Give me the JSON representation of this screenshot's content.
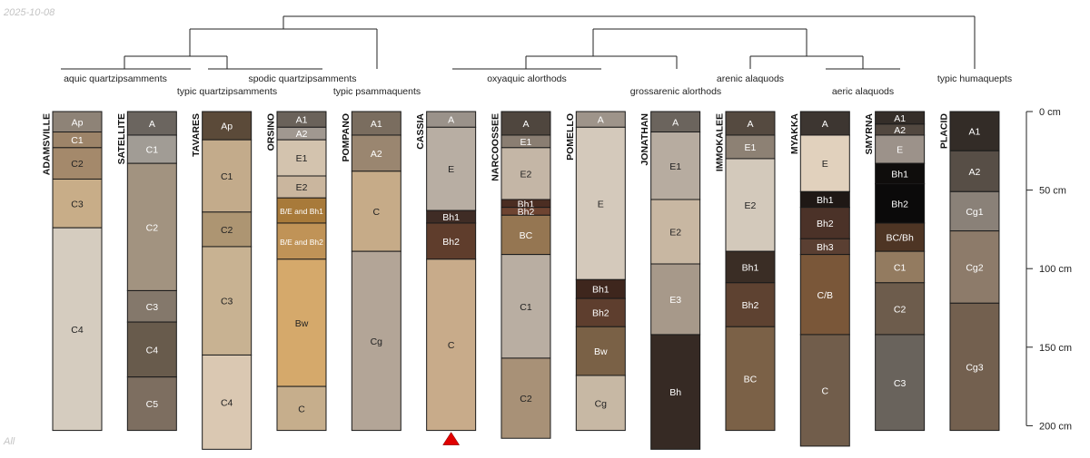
{
  "date_stamp": "2025-10-08",
  "footer_label": "All",
  "chart_data": {
    "type": "soil-profile-sketch",
    "depth_unit": "cm",
    "depth_range": [
      0,
      200
    ],
    "depth_ticks": [
      {
        "depth": 0,
        "label": "0 cm"
      },
      {
        "depth": 50,
        "label": "50 cm"
      },
      {
        "depth": 100,
        "label": "100 cm"
      },
      {
        "depth": 150,
        "label": "150 cm"
      },
      {
        "depth": 200,
        "label": "200 cm"
      }
    ],
    "taxa": [
      {
        "label": "aquic quartzipsamments"
      },
      {
        "label": "typic quartzipsamments"
      },
      {
        "label": "spodic quartzipsamments"
      },
      {
        "label": "typic psammaquents"
      },
      {
        "label": "oxyaquic alorthods"
      },
      {
        "label": "grossarenic alorthods"
      },
      {
        "label": "arenic alaquods"
      },
      {
        "label": "aeric alaquods"
      },
      {
        "label": "typic humaquepts"
      }
    ],
    "profiles": [
      {
        "name": "ADAMSVILLE",
        "horizons": [
          {
            "name": "Ap",
            "top": 0,
            "bottom": 13,
            "color": "#8e8377",
            "text": "#ffffff"
          },
          {
            "name": "C1",
            "top": 13,
            "bottom": 23,
            "color": "#9d8469",
            "text": "#ffffff"
          },
          {
            "name": "C2",
            "top": 23,
            "bottom": 43,
            "color": "#a4896b",
            "text": "#222222"
          },
          {
            "name": "C3",
            "top": 43,
            "bottom": 74,
            "color": "#c8ad88",
            "text": "#222222"
          },
          {
            "name": "C4",
            "top": 74,
            "bottom": 203,
            "color": "#d5ccbf",
            "text": "#222222"
          }
        ]
      },
      {
        "name": "SATELLITE",
        "horizons": [
          {
            "name": "A",
            "top": 0,
            "bottom": 15,
            "color": "#6b655f",
            "text": "#ffffff"
          },
          {
            "name": "C1",
            "top": 15,
            "bottom": 33,
            "color": "#a19c95",
            "text": "#ffffff"
          },
          {
            "name": "C2",
            "top": 33,
            "bottom": 114,
            "color": "#a29380",
            "text": "#ffffff"
          },
          {
            "name": "C3",
            "top": 114,
            "bottom": 134,
            "color": "#84786b",
            "text": "#ffffff"
          },
          {
            "name": "C4",
            "top": 134,
            "bottom": 169,
            "color": "#685b4c",
            "text": "#ffffff"
          },
          {
            "name": "C5",
            "top": 169,
            "bottom": 203,
            "color": "#7d6e60",
            "text": "#ffffff"
          }
        ]
      },
      {
        "name": "TAVARES",
        "horizons": [
          {
            "name": "Ap",
            "top": 0,
            "bottom": 18,
            "color": "#5b4a39",
            "text": "#ffffff"
          },
          {
            "name": "C1",
            "top": 18,
            "bottom": 64,
            "color": "#c3ab8b",
            "text": "#222222"
          },
          {
            "name": "C2",
            "top": 64,
            "bottom": 86,
            "color": "#ad9572",
            "text": "#222222"
          },
          {
            "name": "C3",
            "top": 86,
            "bottom": 155,
            "color": "#c8b292",
            "text": "#222222"
          },
          {
            "name": "C4",
            "top": 155,
            "bottom": 215,
            "color": "#dac8b2",
            "text": "#222222"
          }
        ]
      },
      {
        "name": "ORSINO",
        "horizons": [
          {
            "name": "A1",
            "top": 0,
            "bottom": 10,
            "color": "#6a625a",
            "text": "#ffffff"
          },
          {
            "name": "A2",
            "top": 10,
            "bottom": 18,
            "color": "#a09890",
            "text": "#ffffff"
          },
          {
            "name": "E1",
            "top": 18,
            "bottom": 41,
            "color": "#d3c3ae",
            "text": "#222222"
          },
          {
            "name": "E2",
            "top": 41,
            "bottom": 55,
            "color": "#cab69e",
            "text": "#222222"
          },
          {
            "name": "B/E and Bh1",
            "top": 55,
            "bottom": 71,
            "color": "#a87a3a",
            "text": "#ffffff"
          },
          {
            "name": "B/E and Bh2",
            "top": 71,
            "bottom": 94,
            "color": "#c09357",
            "text": "#ffffff"
          },
          {
            "name": "Bw",
            "top": 94,
            "bottom": 175,
            "color": "#d5a96b",
            "text": "#222222"
          },
          {
            "name": "C",
            "top": 175,
            "bottom": 203,
            "color": "#c6ae8c",
            "text": "#222222"
          }
        ]
      },
      {
        "name": "POMPANO",
        "horizons": [
          {
            "name": "A1",
            "top": 0,
            "bottom": 15,
            "color": "#7a6d5f",
            "text": "#ffffff"
          },
          {
            "name": "A2",
            "top": 15,
            "bottom": 38,
            "color": "#9a8670",
            "text": "#ffffff"
          },
          {
            "name": "C",
            "top": 38,
            "bottom": 89,
            "color": "#c6ab88",
            "text": "#222222"
          },
          {
            "name": "Cg",
            "top": 89,
            "bottom": 203,
            "color": "#b3a597",
            "text": "#222222"
          }
        ]
      },
      {
        "name": "CASSIA",
        "triangle": true,
        "horizons": [
          {
            "name": "A",
            "top": 0,
            "bottom": 10,
            "color": "#9a928a",
            "text": "#ffffff"
          },
          {
            "name": "E",
            "top": 10,
            "bottom": 63,
            "color": "#b8aea3",
            "text": "#222222"
          },
          {
            "name": "Bh1",
            "top": 63,
            "bottom": 71,
            "color": "#3f2c25",
            "text": "#ffffff"
          },
          {
            "name": "Bh2",
            "top": 71,
            "bottom": 94,
            "color": "#5f3d2c",
            "text": "#ffffff"
          },
          {
            "name": "C",
            "top": 94,
            "bottom": 203,
            "color": "#c8ab8a",
            "text": "#222222"
          }
        ]
      },
      {
        "name": "NARCOOSSEE",
        "horizons": [
          {
            "name": "A",
            "top": 0,
            "bottom": 15,
            "color": "#4f463e",
            "text": "#ffffff"
          },
          {
            "name": "E1",
            "top": 15,
            "bottom": 23,
            "color": "#8a7e72",
            "text": "#ffffff"
          },
          {
            "name": "E2",
            "top": 23,
            "bottom": 56,
            "color": "#c4b6a6",
            "text": "#222222"
          },
          {
            "name": "Bh1",
            "top": 56,
            "bottom": 61,
            "color": "#4b2d22",
            "text": "#ffffff"
          },
          {
            "name": "Bh2",
            "top": 61,
            "bottom": 66,
            "color": "#6e4431",
            "text": "#ffffff"
          },
          {
            "name": "BC",
            "top": 66,
            "bottom": 91,
            "color": "#957652",
            "text": "#ffffff"
          },
          {
            "name": "C1",
            "top": 91,
            "bottom": 157,
            "color": "#b9aea2",
            "text": "#222222"
          },
          {
            "name": "C2",
            "top": 157,
            "bottom": 208,
            "color": "#a89177",
            "text": "#222222"
          }
        ]
      },
      {
        "name": "POMELLO",
        "horizons": [
          {
            "name": "A",
            "top": 0,
            "bottom": 10,
            "color": "#9e948a",
            "text": "#ffffff"
          },
          {
            "name": "E",
            "top": 10,
            "bottom": 107,
            "color": "#d4c9bb",
            "text": "#222222"
          },
          {
            "name": "Bh1",
            "top": 107,
            "bottom": 119,
            "color": "#3e261d",
            "text": "#ffffff"
          },
          {
            "name": "Bh2",
            "top": 119,
            "bottom": 137,
            "color": "#5e3e2e",
            "text": "#ffffff"
          },
          {
            "name": "Bw",
            "top": 137,
            "bottom": 168,
            "color": "#7a6146",
            "text": "#ffffff"
          },
          {
            "name": "Cg",
            "top": 168,
            "bottom": 203,
            "color": "#c7b8a4",
            "text": "#222222"
          }
        ]
      },
      {
        "name": "JONATHAN",
        "horizons": [
          {
            "name": "A",
            "top": 0,
            "bottom": 13,
            "color": "#6b645d",
            "text": "#ffffff"
          },
          {
            "name": "E1",
            "top": 13,
            "bottom": 56,
            "color": "#b7aca0",
            "text": "#222222"
          },
          {
            "name": "E2",
            "top": 56,
            "bottom": 97,
            "color": "#c8b7a2",
            "text": "#222222"
          },
          {
            "name": "E3",
            "top": 97,
            "bottom": 142,
            "color": "#a7998a",
            "text": "#ffffff"
          },
          {
            "name": "Bh",
            "top": 142,
            "bottom": 215,
            "color": "#362a24",
            "text": "#ffffff"
          }
        ]
      },
      {
        "name": "IMMOKALEE",
        "horizons": [
          {
            "name": "A",
            "top": 0,
            "bottom": 15,
            "color": "#554a40",
            "text": "#ffffff"
          },
          {
            "name": "E1",
            "top": 15,
            "bottom": 30,
            "color": "#8d8174",
            "text": "#ffffff"
          },
          {
            "name": "E2",
            "top": 30,
            "bottom": 89,
            "color": "#d3c9bb",
            "text": "#222222"
          },
          {
            "name": "Bh1",
            "top": 89,
            "bottom": 109,
            "color": "#3a2d25",
            "text": "#ffffff"
          },
          {
            "name": "Bh2",
            "top": 109,
            "bottom": 137,
            "color": "#5e4231",
            "text": "#ffffff"
          },
          {
            "name": "BC",
            "top": 137,
            "bottom": 203,
            "color": "#7b6147",
            "text": "#ffffff"
          }
        ]
      },
      {
        "name": "MYAKKA",
        "horizons": [
          {
            "name": "A",
            "top": 0,
            "bottom": 15,
            "color": "#3d3631",
            "text": "#ffffff"
          },
          {
            "name": "E",
            "top": 15,
            "bottom": 51,
            "color": "#e1d1bd",
            "text": "#222222"
          },
          {
            "name": "Bh1",
            "top": 51,
            "bottom": 61,
            "color": "#1f1815",
            "text": "#ffffff"
          },
          {
            "name": "Bh2",
            "top": 61,
            "bottom": 81,
            "color": "#4b3228",
            "text": "#ffffff"
          },
          {
            "name": "Bh3",
            "top": 81,
            "bottom": 91,
            "color": "#5a3f32",
            "text": "#ffffff"
          },
          {
            "name": "C/B",
            "top": 91,
            "bottom": 142,
            "color": "#7a5739",
            "text": "#ffffff"
          },
          {
            "name": "C",
            "top": 142,
            "bottom": 213,
            "color": "#715d4b",
            "text": "#ffffff"
          }
        ]
      },
      {
        "name": "SMYRNA",
        "horizons": [
          {
            "name": "A1",
            "top": 0,
            "bottom": 8,
            "color": "#352e29",
            "text": "#ffffff"
          },
          {
            "name": "A2",
            "top": 8,
            "bottom": 15,
            "color": "#524840",
            "text": "#ffffff"
          },
          {
            "name": "E",
            "top": 15,
            "bottom": 33,
            "color": "#9c928a",
            "text": "#ffffff"
          },
          {
            "name": "Bh1",
            "top": 33,
            "bottom": 46,
            "color": "#0f0d0c",
            "text": "#ffffff"
          },
          {
            "name": "Bh2",
            "top": 46,
            "bottom": 71,
            "color": "#0b0a0a",
            "text": "#ffffff"
          },
          {
            "name": "BC/Bh",
            "top": 71,
            "bottom": 89,
            "color": "#4e3524",
            "text": "#ffffff"
          },
          {
            "name": "C1",
            "top": 89,
            "bottom": 109,
            "color": "#937b60",
            "text": "#ffffff"
          },
          {
            "name": "C2",
            "top": 109,
            "bottom": 142,
            "color": "#6d5c4c",
            "text": "#ffffff"
          },
          {
            "name": "C3",
            "top": 142,
            "bottom": 203,
            "color": "#69635c",
            "text": "#ffffff"
          }
        ]
      },
      {
        "name": "PLACID",
        "horizons": [
          {
            "name": "A1",
            "top": 0,
            "bottom": 25,
            "color": "#332c27",
            "text": "#ffffff"
          },
          {
            "name": "A2",
            "top": 25,
            "bottom": 51,
            "color": "#574e46",
            "text": "#ffffff"
          },
          {
            "name": "Cg1",
            "top": 51,
            "bottom": 76,
            "color": "#8a8178",
            "text": "#ffffff"
          },
          {
            "name": "Cg2",
            "top": 76,
            "bottom": 122,
            "color": "#8d7b6a",
            "text": "#ffffff"
          },
          {
            "name": "Cg3",
            "top": 122,
            "bottom": 203,
            "color": "#73604f",
            "text": "#ffffff"
          }
        ]
      }
    ]
  }
}
